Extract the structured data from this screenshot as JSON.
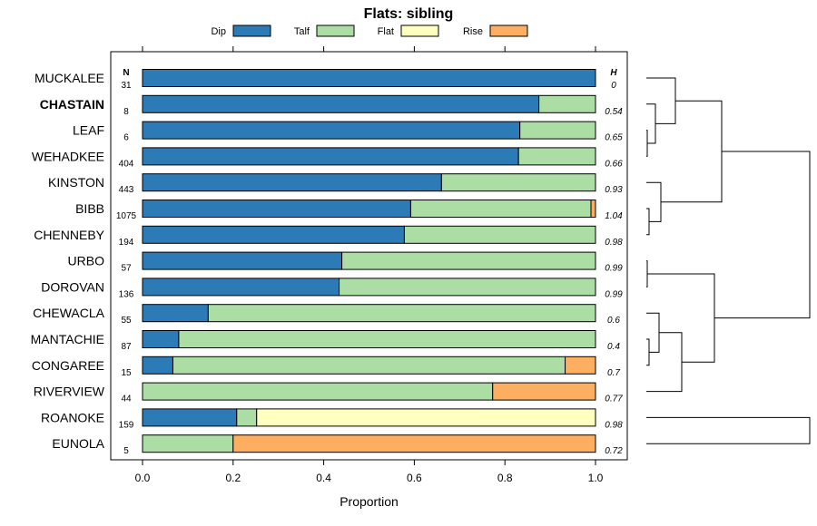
{
  "chart_data": {
    "type": "bar",
    "orientation": "horizontal-stacked",
    "title": "Flats: sibling",
    "xlabel": "Proportion",
    "xlim": [
      0,
      1
    ],
    "xticks": [
      "0.0",
      "0.2",
      "0.4",
      "0.6",
      "0.8",
      "1.0"
    ],
    "n_header": "N",
    "h_header": "H",
    "highlight": "CHASTAIN",
    "legend": [
      {
        "name": "Dip",
        "color": "#2c7bb6"
      },
      {
        "name": "Talf",
        "color": "#abdda4"
      },
      {
        "name": "Flat",
        "color": "#ffffbf"
      },
      {
        "name": "Rise",
        "color": "#fdae61"
      }
    ],
    "rows": [
      {
        "name": "MUCKALEE",
        "n": "31",
        "h": "0",
        "values": [
          1.0,
          0.0,
          0.0,
          0.0
        ]
      },
      {
        "name": "CHASTAIN",
        "n": "8",
        "h": "0.54",
        "values": [
          0.875,
          0.125,
          0.0,
          0.0
        ]
      },
      {
        "name": "LEAF",
        "n": "6",
        "h": "0.65",
        "values": [
          0.833,
          0.167,
          0.0,
          0.0
        ]
      },
      {
        "name": "WEHADKEE",
        "n": "404",
        "h": "0.66",
        "values": [
          0.83,
          0.17,
          0.0,
          0.0
        ]
      },
      {
        "name": "KINSTON",
        "n": "443",
        "h": "0.93",
        "values": [
          0.66,
          0.34,
          0.0,
          0.0
        ]
      },
      {
        "name": "BIBB",
        "n": "1075",
        "h": "1.04",
        "values": [
          0.592,
          0.398,
          0.0,
          0.01
        ]
      },
      {
        "name": "CHENNEBY",
        "n": "194",
        "h": "0.98",
        "values": [
          0.578,
          0.422,
          0.0,
          0.0
        ]
      },
      {
        "name": "URBO",
        "n": "57",
        "h": "0.99",
        "values": [
          0.44,
          0.56,
          0.0,
          0.0
        ]
      },
      {
        "name": "DOROVAN",
        "n": "136",
        "h": "0.99",
        "values": [
          0.434,
          0.566,
          0.0,
          0.0
        ]
      },
      {
        "name": "CHEWACLA",
        "n": "55",
        "h": "0.6",
        "values": [
          0.145,
          0.855,
          0.0,
          0.0
        ]
      },
      {
        "name": "MANTACHIE",
        "n": "87",
        "h": "0.4",
        "values": [
          0.08,
          0.92,
          0.0,
          0.0
        ]
      },
      {
        "name": "CONGAREE",
        "n": "15",
        "h": "0.7",
        "values": [
          0.067,
          0.866,
          0.0,
          0.067
        ]
      },
      {
        "name": "RIVERVIEW",
        "n": "44",
        "h": "0.77",
        "values": [
          0.0,
          0.773,
          0.0,
          0.227
        ]
      },
      {
        "name": "ROANOKE",
        "n": "159",
        "h": "0.98",
        "values": [
          0.208,
          0.044,
          0.748,
          0.0
        ]
      },
      {
        "name": "EUNOLA",
        "n": "5",
        "h": "0.72",
        "values": [
          0.0,
          0.2,
          0.0,
          0.8
        ]
      }
    ]
  }
}
